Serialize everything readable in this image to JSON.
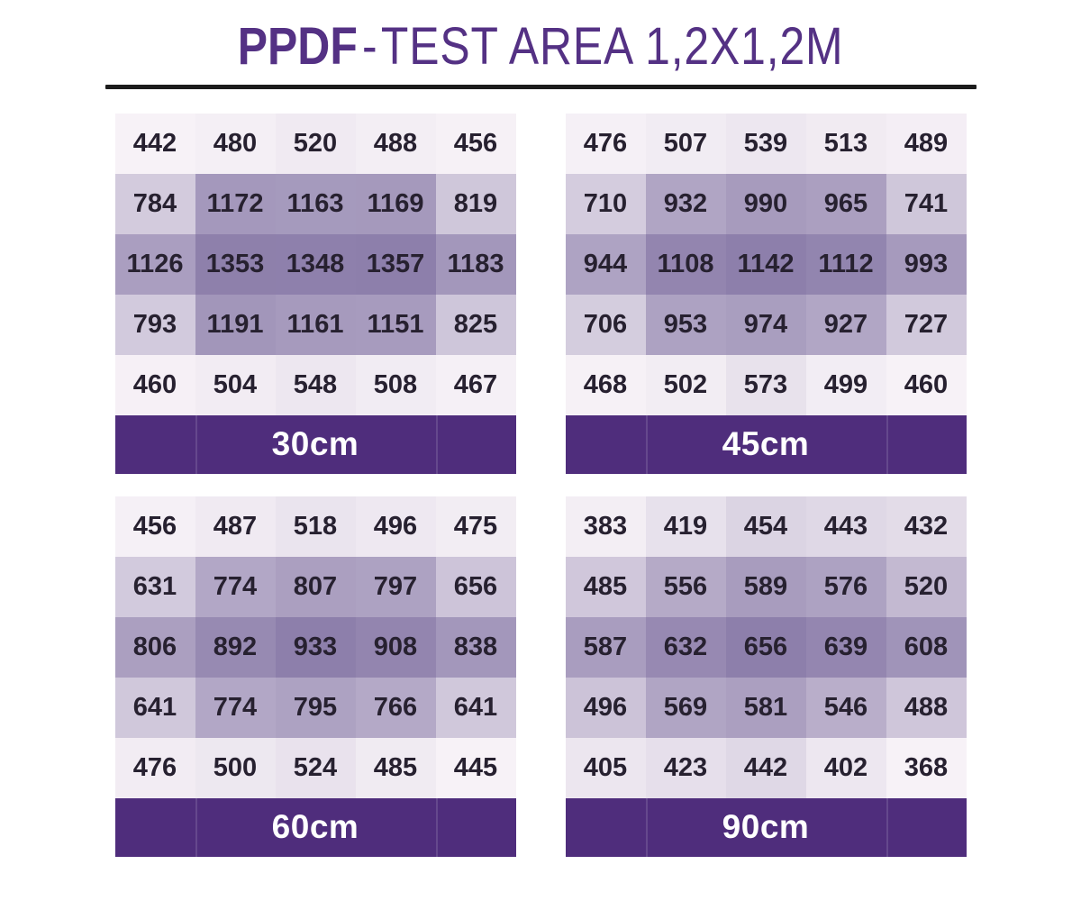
{
  "title": {
    "brand": "PPDF",
    "separator": "-",
    "rest": "TEST AREA 1,2X1,2M",
    "full": "PPDF - TEST AREA 1,2X1,2M"
  },
  "colors": {
    "title": "#543184",
    "rule": "#1c1c1c",
    "cell_min": "#f7f2f7",
    "cell_max": "#8d7fab",
    "footer_bg": "#4f2d7c",
    "footer_text": "#ffffff",
    "cell_text": "#272130",
    "page_bg": "#ffffff"
  },
  "chart_data": {
    "type": "heatmap",
    "title": "PPDF - TEST AREA 1,2X1,2M",
    "layout": "2x2 grid of 5x5 heatmap tables, each with a distance label band below",
    "color_scale": {
      "min_color": "#f7f2f7",
      "max_color": "#8d7fab",
      "normalization": "per-grid min-max"
    },
    "grids": [
      {
        "label": "30cm",
        "values": [
          [
            442,
            480,
            520,
            488,
            456
          ],
          [
            784,
            1172,
            1163,
            1169,
            819
          ],
          [
            1126,
            1353,
            1348,
            1357,
            1183
          ],
          [
            793,
            1191,
            1161,
            1151,
            825
          ],
          [
            460,
            504,
            548,
            508,
            467
          ]
        ]
      },
      {
        "label": "45cm",
        "values": [
          [
            476,
            507,
            539,
            513,
            489
          ],
          [
            710,
            932,
            990,
            965,
            741
          ],
          [
            944,
            1108,
            1142,
            1112,
            993
          ],
          [
            706,
            953,
            974,
            927,
            727
          ],
          [
            468,
            502,
            573,
            499,
            460
          ]
        ]
      },
      {
        "label": "60cm",
        "values": [
          [
            456,
            487,
            518,
            496,
            475
          ],
          [
            631,
            774,
            807,
            797,
            656
          ],
          [
            806,
            892,
            933,
            908,
            838
          ],
          [
            641,
            774,
            795,
            766,
            641
          ],
          [
            476,
            500,
            524,
            485,
            445
          ]
        ]
      },
      {
        "label": "90cm",
        "values": [
          [
            383,
            419,
            454,
            443,
            432
          ],
          [
            485,
            556,
            589,
            576,
            520
          ],
          [
            587,
            632,
            656,
            639,
            608
          ],
          [
            496,
            569,
            581,
            546,
            488
          ],
          [
            405,
            423,
            442,
            402,
            368
          ]
        ]
      }
    ]
  }
}
